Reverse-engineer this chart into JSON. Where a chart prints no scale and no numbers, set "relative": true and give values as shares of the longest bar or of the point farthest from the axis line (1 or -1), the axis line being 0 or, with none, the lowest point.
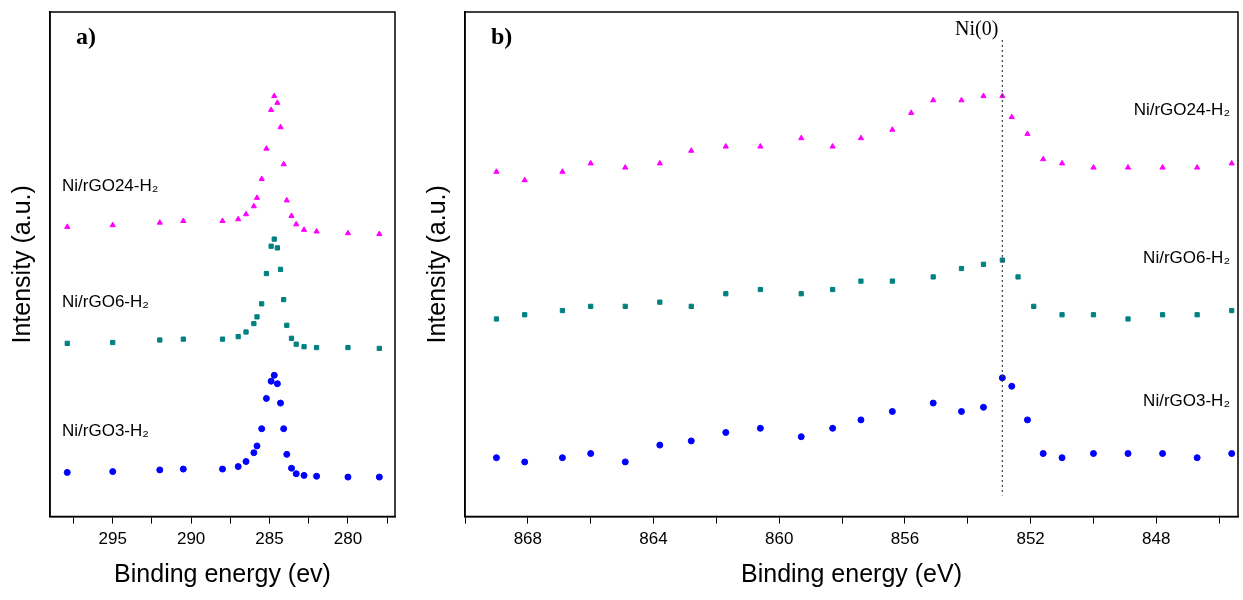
{
  "chart_data": [
    {
      "type": "scatter",
      "title": "a)",
      "xlabel": "Binding energy (ev)",
      "ylabel": "Intensity (a.u.)",
      "relative": true,
      "xlim": [
        299,
        277
      ],
      "xticks": [
        {
          "value": 297.5,
          "label": null
        },
        295,
        {
          "value": 292.5,
          "label": null
        },
        290,
        {
          "value": 287.5,
          "label": null
        },
        285,
        {
          "value": 282.5,
          "label": null
        },
        280,
        {
          "value": 277.5,
          "label": null
        }
      ],
      "legend": false,
      "grid": false,
      "series": [
        {
          "name": "Ni/rGO24-H₂",
          "color": "#ff00ff",
          "marker": "triangle",
          "x": [
            297.9,
            295,
            292,
            290.5,
            288,
            287,
            286.5,
            286,
            285.8,
            285.5,
            285.2,
            284.9,
            284.7,
            284.5,
            284.3,
            284.1,
            283.9,
            283.6,
            283.3,
            282.8,
            282,
            280,
            278
          ],
          "values": [
            0.689,
            0.693,
            0.699,
            0.703,
            0.703,
            0.707,
            0.719,
            0.738,
            0.758,
            0.803,
            0.875,
            0.967,
            1.0,
            0.984,
            0.926,
            0.838,
            0.752,
            0.715,
            0.695,
            0.682,
            0.678,
            0.674,
            0.672
          ]
        },
        {
          "name": "Ni/rGO6-H₂",
          "color": "#008080",
          "marker": "square",
          "x": [
            297.9,
            295,
            292,
            290.5,
            288,
            287,
            286.5,
            286,
            285.8,
            285.5,
            285.2,
            284.9,
            284.7,
            284.5,
            284.3,
            284.1,
            283.9,
            283.6,
            283.3,
            282.8,
            282,
            280,
            278
          ],
          "values": [
            0.412,
            0.414,
            0.42,
            0.422,
            0.422,
            0.428,
            0.439,
            0.459,
            0.475,
            0.506,
            0.578,
            0.643,
            0.66,
            0.639,
            0.588,
            0.516,
            0.455,
            0.424,
            0.41,
            0.404,
            0.402,
            0.402,
            0.4
          ]
        },
        {
          "name": "Ni/rGO3-H₂",
          "color": "#0000ff",
          "marker": "circle",
          "x": [
            297.9,
            295,
            292,
            290.5,
            288,
            287,
            286.5,
            286,
            285.8,
            285.5,
            285.2,
            284.9,
            284.7,
            284.5,
            284.3,
            284.1,
            283.9,
            283.6,
            283.3,
            282.8,
            282,
            280,
            278
          ],
          "values": [
            0.105,
            0.107,
            0.111,
            0.113,
            0.113,
            0.119,
            0.131,
            0.152,
            0.168,
            0.209,
            0.281,
            0.322,
            0.336,
            0.316,
            0.27,
            0.209,
            0.148,
            0.115,
            0.102,
            0.098,
            0.096,
            0.094,
            0.094
          ]
        }
      ]
    },
    {
      "type": "scatter",
      "title": "b)",
      "xlabel": "Binding energy (eV)",
      "ylabel": "Intensity (a.u.)",
      "relative": true,
      "xlim": [
        870,
        845.4
      ],
      "xticks": [
        {
          "value": 870,
          "label": null
        },
        868,
        {
          "value": 866,
          "label": null
        },
        864,
        {
          "value": 862,
          "label": null
        },
        860,
        {
          "value": 858,
          "label": null
        },
        856,
        {
          "value": 854,
          "label": null
        },
        852,
        {
          "value": 850,
          "label": null
        },
        848,
        {
          "value": 846,
          "label": null
        }
      ],
      "legend": false,
      "grid": false,
      "ref_lines": [
        {
          "axis": "x",
          "value": 852.9,
          "label": "Ni(0)",
          "color": "#404040",
          "line_style": "dotted"
        }
      ],
      "series": [
        {
          "name": "Ni/rGO24-H₂",
          "color": "#ff00ff",
          "marker": "triangle",
          "x": [
            869.0,
            868.1,
            866.9,
            866.0,
            864.9,
            863.8,
            862.8,
            861.7,
            860.6,
            859.3,
            858.3,
            857.4,
            856.4,
            855.8,
            855.1,
            854.2,
            853.5,
            852.9,
            852.6,
            852.1,
            851.6,
            851.0,
            850.0,
            848.9,
            847.8,
            846.7,
            845.6
          ],
          "values": [
            0.82,
            0.8,
            0.82,
            0.84,
            0.83,
            0.84,
            0.87,
            0.88,
            0.88,
            0.9,
            0.88,
            0.9,
            0.92,
            0.96,
            0.99,
            0.99,
            1.0,
            1.0,
            0.95,
            0.91,
            0.85,
            0.84,
            0.83,
            0.83,
            0.83,
            0.83,
            0.84
          ]
        },
        {
          "name": "Ni/rGO6-H₂",
          "color": "#008080",
          "marker": "square",
          "x": [
            869.0,
            868.1,
            866.9,
            866.0,
            864.9,
            863.8,
            862.8,
            861.7,
            860.6,
            859.3,
            858.3,
            857.4,
            856.4,
            855.1,
            854.2,
            853.5,
            852.9,
            852.4,
            851.9,
            851.0,
            850.0,
            848.9,
            847.8,
            846.7,
            845.6
          ],
          "values": [
            0.47,
            0.48,
            0.49,
            0.5,
            0.5,
            0.51,
            0.5,
            0.53,
            0.54,
            0.53,
            0.54,
            0.56,
            0.56,
            0.57,
            0.59,
            0.6,
            0.61,
            0.57,
            0.5,
            0.48,
            0.48,
            0.47,
            0.48,
            0.48,
            0.49
          ]
        },
        {
          "name": "Ni/rGO3-H₂",
          "color": "#0000ff",
          "marker": "circle",
          "x": [
            869.0,
            868.1,
            866.9,
            866.0,
            864.9,
            863.8,
            862.8,
            861.7,
            860.6,
            859.3,
            858.3,
            857.4,
            856.4,
            855.1,
            854.2,
            853.5,
            852.9,
            852.6,
            852.1,
            851.6,
            851.0,
            850.0,
            848.9,
            847.8,
            846.7,
            845.6
          ],
          "values": [
            0.14,
            0.13,
            0.14,
            0.15,
            0.13,
            0.17,
            0.18,
            0.2,
            0.21,
            0.19,
            0.21,
            0.23,
            0.25,
            0.27,
            0.25,
            0.26,
            0.33,
            0.31,
            0.23,
            0.15,
            0.14,
            0.15,
            0.15,
            0.15,
            0.14,
            0.15
          ]
        }
      ]
    }
  ]
}
